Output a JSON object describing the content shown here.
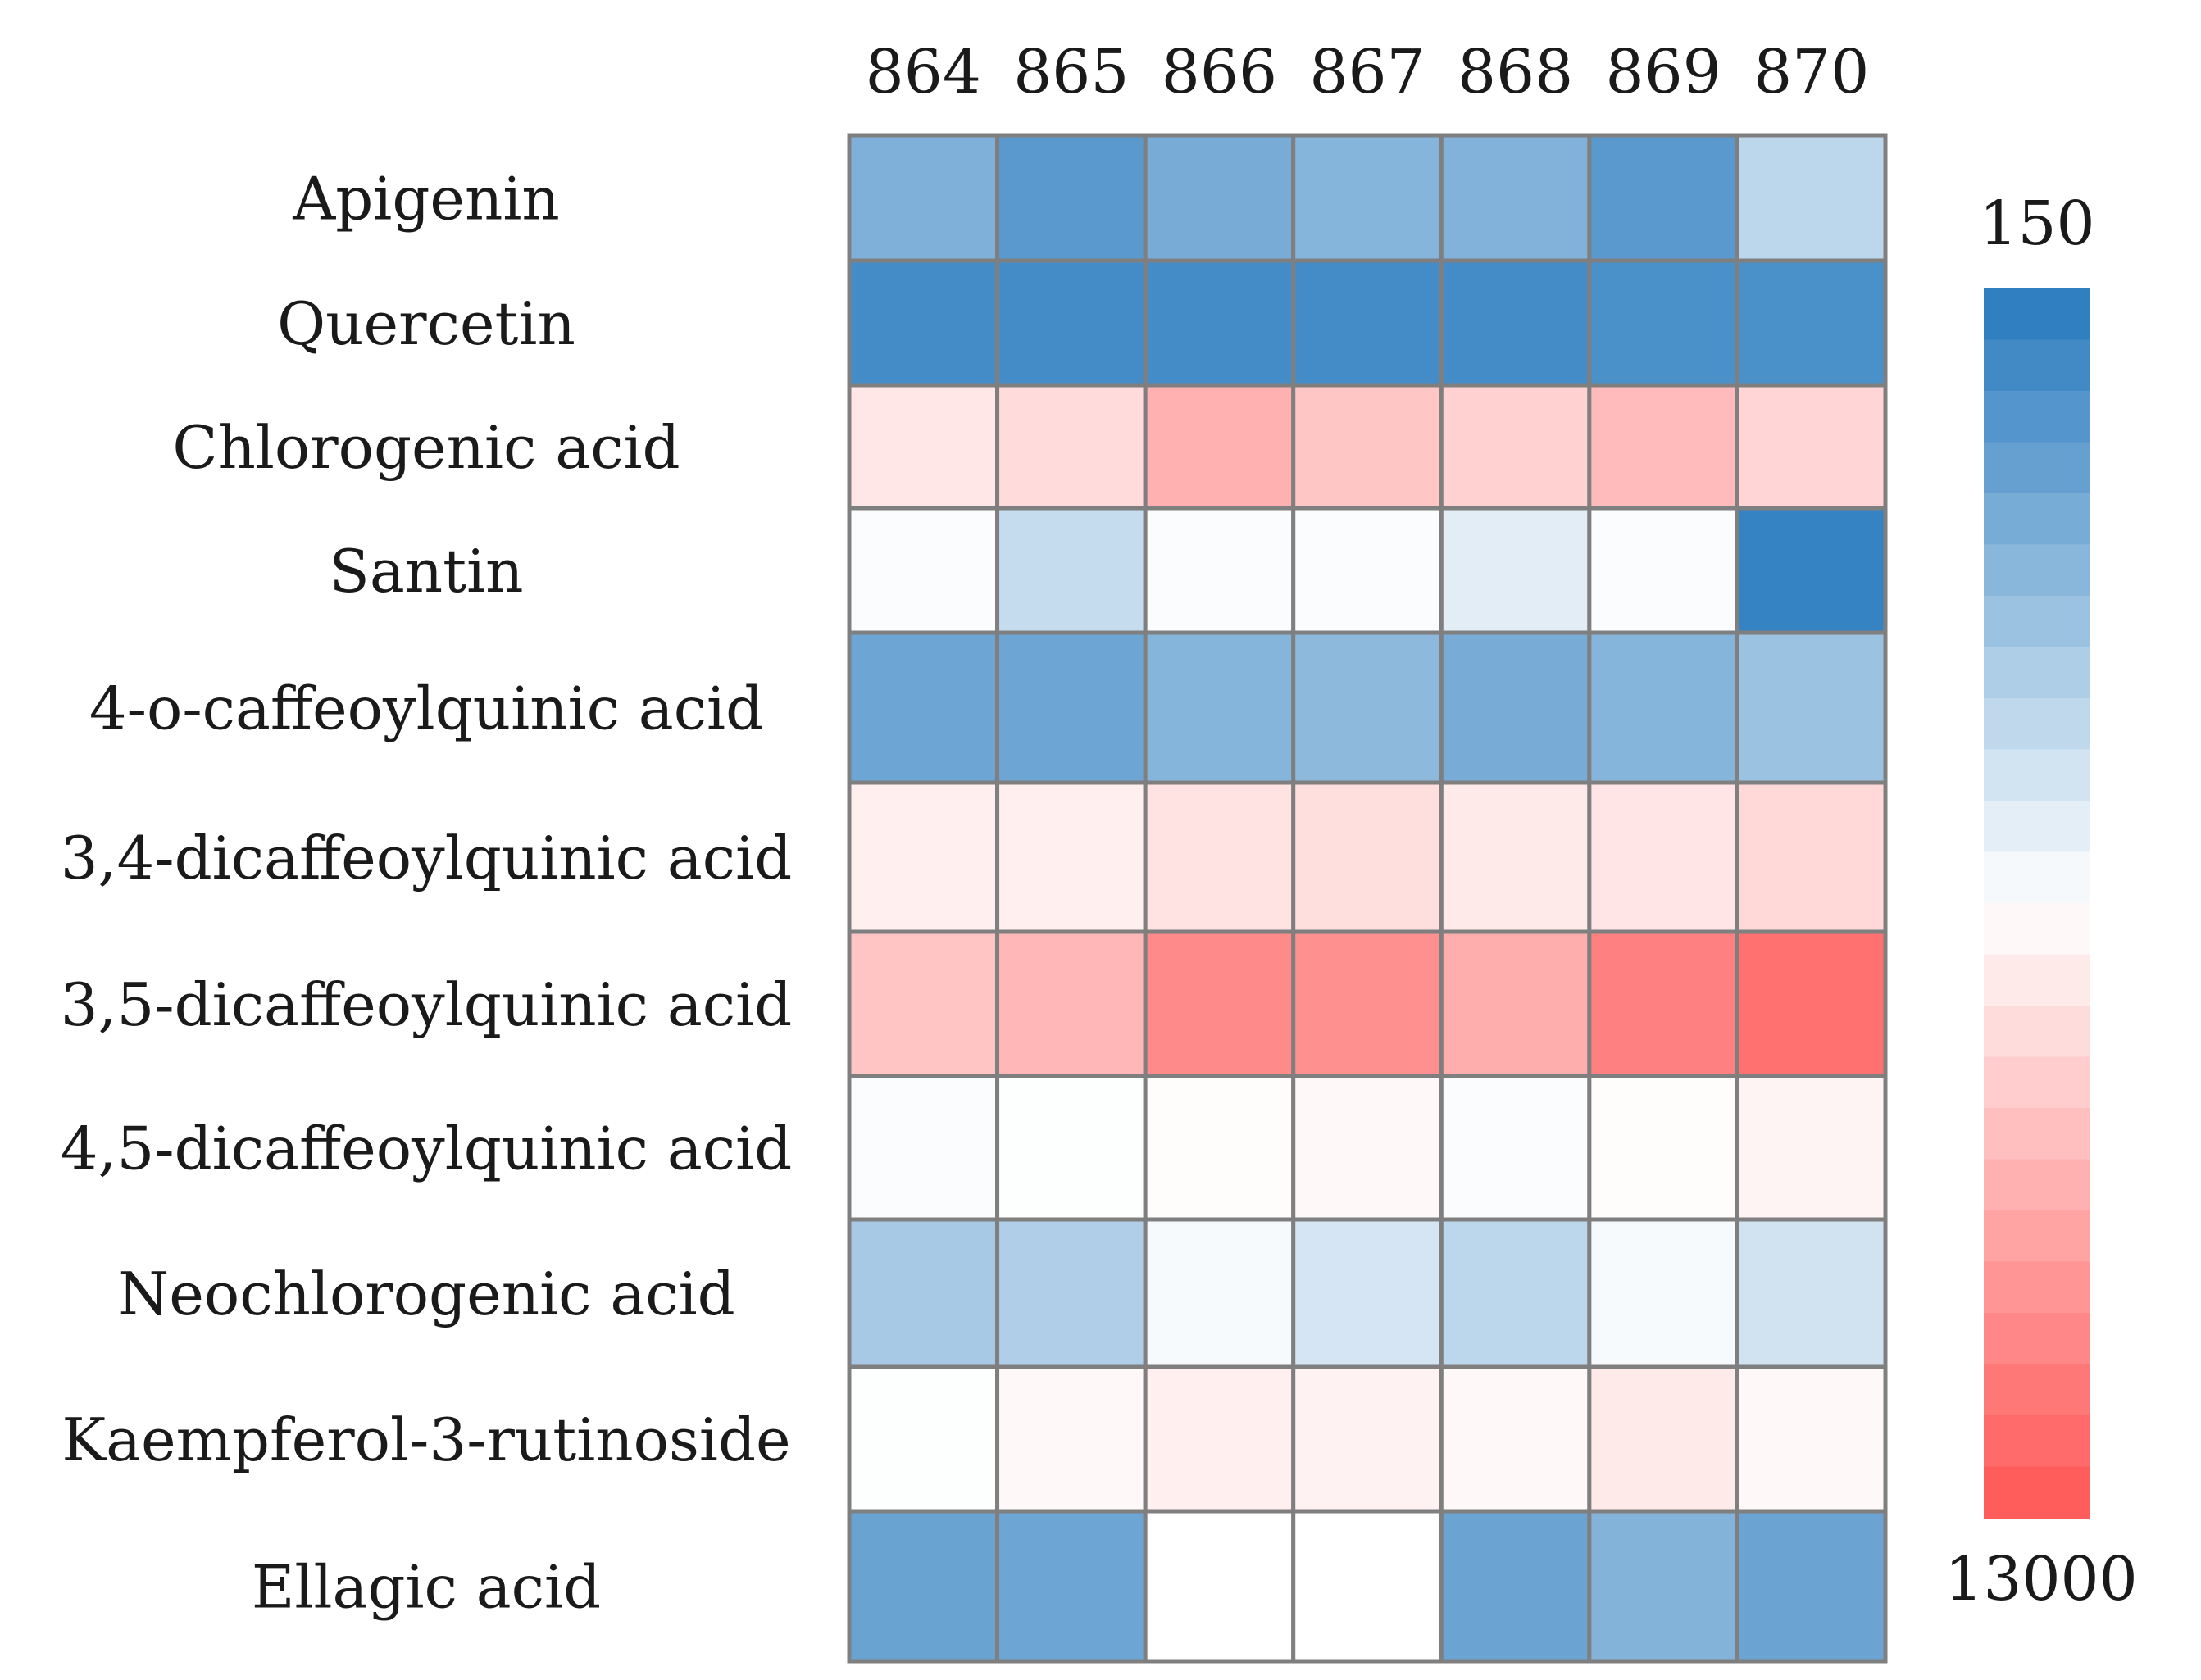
{
  "chart_data": {
    "type": "heatmap",
    "title": "",
    "xlabel": "",
    "ylabel": "",
    "columns": [
      "864",
      "865",
      "866",
      "867",
      "868",
      "869",
      "870"
    ],
    "rows": [
      "Apigenin",
      "Quercetin",
      "Chlorogenic acid",
      "Santin",
      "4-o-caffeoylquinic acid",
      "3,4-dicaffeoylquinic acid",
      "3,5-dicaffeoylquinic acid",
      "4,5-dicaffeoylquinic acid",
      "Neochlorogenic acid",
      "Kaempferol-3-rutinoside",
      "Ellagic acid"
    ],
    "values": [
      [
        -0.62,
        -0.8,
        -0.65,
        -0.58,
        -0.6,
        -0.8,
        -0.32
      ],
      [
        -0.9,
        -0.9,
        -0.9,
        -0.9,
        -0.9,
        -0.87,
        -0.87
      ],
      [
        0.15,
        0.22,
        0.48,
        0.35,
        0.28,
        0.42,
        0.26
      ],
      [
        -0.02,
        -0.28,
        -0.02,
        -0.02,
        -0.14,
        -0.02,
        -0.97
      ],
      [
        -0.7,
        -0.7,
        -0.58,
        -0.55,
        -0.65,
        -0.58,
        -0.48
      ],
      [
        0.1,
        0.1,
        0.18,
        0.2,
        0.13,
        0.16,
        0.24
      ],
      [
        0.36,
        0.44,
        0.72,
        0.68,
        0.5,
        0.78,
        0.88
      ],
      [
        -0.02,
        -0.01,
        0.02,
        0.04,
        -0.02,
        0.02,
        0.07
      ],
      [
        -0.42,
        -0.38,
        -0.04,
        -0.2,
        -0.32,
        -0.04,
        -0.22
      ],
      [
        -0.01,
        0.04,
        0.1,
        0.08,
        0.04,
        0.13,
        0.04
      ],
      [
        -0.72,
        -0.7,
        0.0,
        0.0,
        -0.71,
        -0.59,
        -0.71
      ]
    ],
    "colorbar": {
      "top_label": "150",
      "bottom_label": "13000",
      "top_color": "#2f7fc1",
      "mid_color": "#ffffff",
      "bottom_color": "#ff5c5c"
    },
    "colors": {
      "blue": "#2f7fc1",
      "white": "#ffffff",
      "red": "#ff5c5c",
      "grid": "#7f7f7f"
    },
    "grid": true
  }
}
